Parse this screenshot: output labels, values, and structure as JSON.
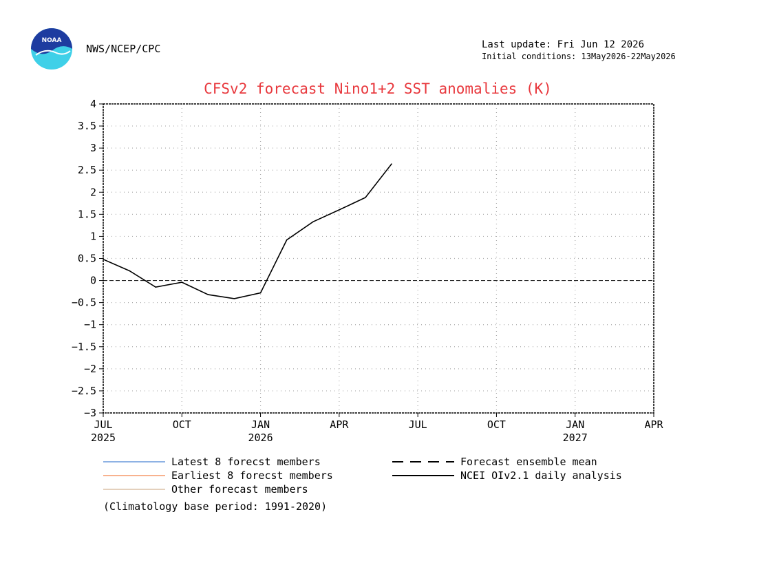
{
  "header": {
    "agency": "NWS/NCEP/CPC",
    "logo_text": "NOAA",
    "last_update": "Last update: Fri Jun 12 2026",
    "initial_conditions": "Initial conditions: 13May2026-22May2026"
  },
  "footer": {
    "climatology_note": "(Climatology base period: 1991-2020)"
  },
  "colors": {
    "title": "#e8383d",
    "latest_members": "#1e64c8",
    "earliest_members": "#f0641e",
    "other_members": "#c8a078",
    "analysis": "#000000",
    "grid": "#aaaaaa"
  },
  "chart_data": {
    "type": "line",
    "title": "CFSv2 forecast Nino1+2 SST anomalies (K)",
    "xlabel": "",
    "ylabel": "",
    "ylim": [
      -3,
      4
    ],
    "yticks": [
      "4",
      "3.5",
      "3",
      "2.5",
      "2",
      "1.5",
      "1",
      "0.5",
      "0",
      "-0.5",
      "-1",
      "-1.5",
      "-2",
      "-2.5",
      "-3"
    ],
    "xlim": [
      "2025-07",
      "2027-04"
    ],
    "xticks": [
      {
        "label": "JUL",
        "year": "2025",
        "date": "2025-07"
      },
      {
        "label": "OCT",
        "year": "",
        "date": "2025-10"
      },
      {
        "label": "JAN",
        "year": "2026",
        "date": "2026-01"
      },
      {
        "label": "APR",
        "year": "",
        "date": "2026-04"
      },
      {
        "label": "JUL",
        "year": "",
        "date": "2026-07"
      },
      {
        "label": "OCT",
        "year": "",
        "date": "2026-10"
      },
      {
        "label": "JAN",
        "year": "2027",
        "date": "2027-01"
      },
      {
        "label": "APR",
        "year": "",
        "date": "2027-04"
      }
    ],
    "grid": true,
    "zero_line": "dashed",
    "legend": [
      {
        "label": "Latest 8 forecst members",
        "style": "solid-thin",
        "color": "#1e64c8"
      },
      {
        "label": "Earliest 8 forecst members",
        "style": "solid-thin",
        "color": "#f0641e"
      },
      {
        "label": "Other forecast members",
        "style": "solid-thin",
        "color": "#c8a078"
      },
      {
        "label": "Forecast ensemble mean",
        "style": "dashed",
        "color": "#000000"
      },
      {
        "label": "NCEI OIv2.1 daily analysis",
        "style": "solid",
        "color": "#000000"
      }
    ],
    "series": [
      {
        "name": "NCEI OIv2.1 daily analysis",
        "x": [
          "2025-07",
          "2025-08",
          "2025-09",
          "2025-10",
          "2025-11",
          "2025-12",
          "2026-01",
          "2026-02",
          "2026-03",
          "2026-04",
          "2026-05",
          "2026-06"
        ],
        "values": [
          0.48,
          0.22,
          -0.15,
          -0.04,
          -0.32,
          -0.41,
          -0.28,
          0.92,
          1.33,
          1.6,
          1.88,
          2.64
        ]
      }
    ]
  }
}
